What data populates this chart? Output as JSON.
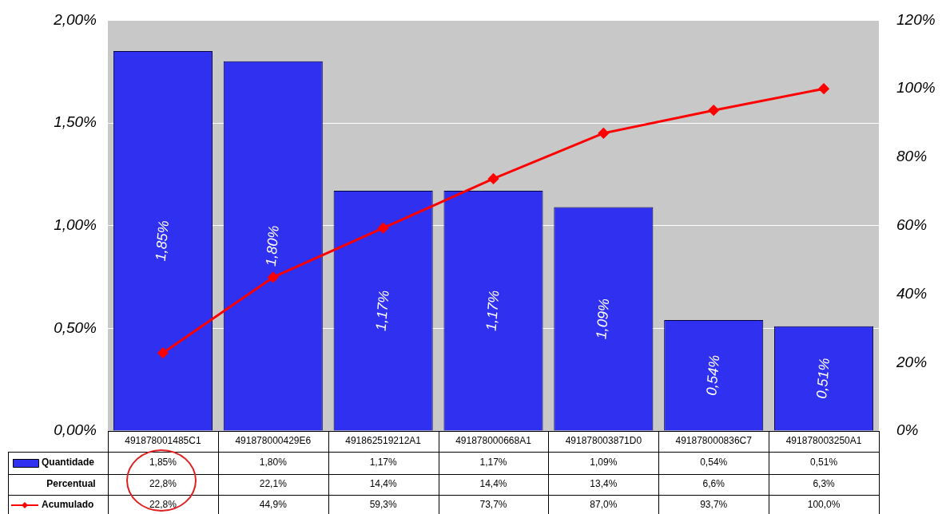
{
  "chart_data": {
    "type": "bar",
    "categories": [
      "491878001485C1",
      "491878000429E6",
      "491862519212A1",
      "491878000668A1",
      "491878003871D0",
      "491878000836C7",
      "491878003250A1"
    ],
    "series": [
      {
        "name": "Quantidade",
        "color": "#3030f0",
        "values": [
          1.85,
          1.8,
          1.17,
          1.17,
          1.09,
          0.54,
          0.51
        ],
        "value_labels": [
          "1,85%",
          "1,80%",
          "1,17%",
          "1,17%",
          "1,09%",
          "0,54%",
          "0,51%"
        ]
      },
      {
        "name": "Acumulado",
        "type": "line",
        "axis": "y2",
        "color": "#ff0000",
        "marker": "diamond",
        "values": [
          22.8,
          44.9,
          59.3,
          73.7,
          87.0,
          93.7,
          100.0
        ],
        "value_labels": [
          "22,8%",
          "44,9%",
          "59,3%",
          "73,7%",
          "87,0%",
          "93,7%",
          "100,0%"
        ]
      }
    ],
    "ylim": [
      0,
      2
    ],
    "yticks": [
      {
        "value": 0,
        "label": "0,00%"
      },
      {
        "value": 0.5,
        "label": "0,50%"
      },
      {
        "value": 1,
        "label": "1,00%"
      },
      {
        "value": 1.5,
        "label": "1,50%"
      },
      {
        "value": 2,
        "label": "2,00%"
      }
    ],
    "y2lim": [
      0,
      120
    ],
    "y2ticks": [
      {
        "value": 0,
        "label": "0%"
      },
      {
        "value": 20,
        "label": "20%"
      },
      {
        "value": 40,
        "label": "40%"
      },
      {
        "value": 60,
        "label": "60%"
      },
      {
        "value": 80,
        "label": "80%"
      },
      {
        "value": 100,
        "label": "100%"
      },
      {
        "value": 120,
        "label": "120%"
      }
    ],
    "grid": "y",
    "legend": "bottom",
    "annotations": [
      "Percentual",
      "22,8%",
      "22,1%",
      "14,4%",
      "14,4%",
      "13,4%",
      "6,6%",
      "6,3%"
    ]
  }
}
